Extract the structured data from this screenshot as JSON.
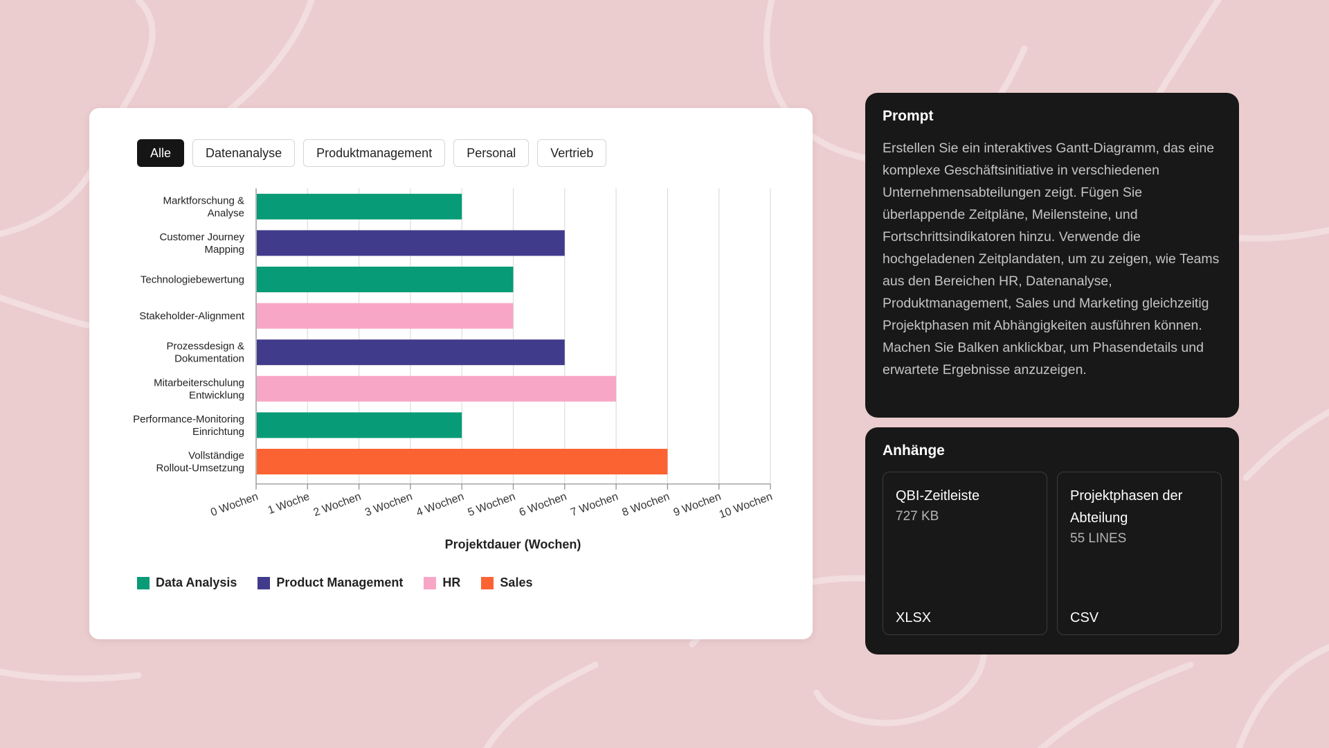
{
  "filters": [
    "Alle",
    "Datenanalyse",
    "Produktmanagement",
    "Personal",
    "Vertrieb"
  ],
  "active_filter": "Alle",
  "colors": {
    "Data Analysis": "#079b77",
    "Product Management": "#413b8c",
    "HR": "#f8a6c6",
    "Sales": "#fc6333"
  },
  "chart_data": {
    "type": "bar",
    "orientation": "horizontal",
    "categories": [
      [
        "Marktforschung &",
        "Analyse"
      ],
      [
        "Customer Journey",
        "Mapping"
      ],
      [
        "Technologiebewertung"
      ],
      [
        "Stakeholder-Alignment"
      ],
      [
        "Prozessdesign &",
        "Dokumentation"
      ],
      [
        "Mitarbeiterschulung",
        "Entwicklung"
      ],
      [
        "Performance-Monitoring",
        "Einrichtung"
      ],
      [
        "Vollständige",
        "Rollout-Umsetzung"
      ]
    ],
    "values": [
      4,
      6,
      5,
      5,
      6,
      7,
      4,
      8
    ],
    "series": [
      "Data Analysis",
      "Product Management",
      "Data Analysis",
      "HR",
      "Product Management",
      "HR",
      "Data Analysis",
      "Sales"
    ],
    "xlabel": "Projektdauer (Wochen)",
    "xlim": [
      0,
      10
    ],
    "tick_labels": [
      "0 Wochen",
      "1 Woche",
      "2 Wochen",
      "3 Wochen",
      "4 Wochen",
      "5 Wochen",
      "6 Wochen",
      "7 Wochen",
      "8 Wochen",
      "9 Wochen",
      "10 Wochen"
    ],
    "legend": [
      "Data Analysis",
      "Product Management",
      "HR",
      "Sales"
    ],
    "grid": true
  },
  "prompt": {
    "title": "Prompt",
    "text": "Erstellen Sie ein interaktives Gantt-Diagramm, das eine komplexe Geschäftsinitiative in verschiedenen Unternehmensabteilungen zeigt. Fügen Sie überlappende Zeitpläne, Meilensteine, und Fortschrittsindikatoren hinzu. Verwende die hochgeladenen Zeitplandaten, um zu zeigen, wie Teams aus den Bereichen HR, Datenanalyse, Produktmanagement, Sales und Marketing gleichzeitig Projektphasen mit Abhängigkeiten ausführen können. Machen Sie Balken anklickbar, um Phasendetails und erwartete Ergebnisse anzuzeigen."
  },
  "attachments": {
    "title": "Anhänge",
    "items": [
      {
        "name": "QBI-Zeitleiste",
        "size": "727 KB",
        "type": "XLSX"
      },
      {
        "name": "Projektphasen der Abteilung",
        "size": "55 LINES",
        "type": "CSV"
      }
    ]
  }
}
